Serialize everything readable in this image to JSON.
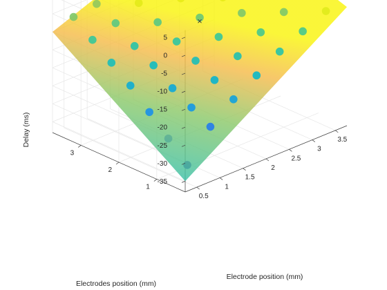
{
  "chart_data": {
    "type": "scatter3d-surface",
    "title": "",
    "xlabel": "Electrode position (mm)",
    "ylabel": "Electrodes position (mm)",
    "zlabel": "Delay (ms)",
    "xticks": [
      "0.5",
      "1",
      "1.5",
      "2",
      "2.5",
      "3",
      "3.5"
    ],
    "yticks": [
      "1",
      "2",
      "3"
    ],
    "zticks": [
      "-35",
      "-30",
      "-25",
      "-20",
      "-15",
      "-10",
      "-5",
      "0",
      "5"
    ],
    "xlim": [
      0.25,
      3.75
    ],
    "ylim": [
      0.25,
      3.75
    ],
    "zlim": [
      -38,
      7
    ],
    "grid": true,
    "colormap": "parula",
    "surface": {
      "description": "fitted plane",
      "corners": [
        {
          "x": 0.25,
          "y": 0.25,
          "z": -35
        },
        {
          "x": 3.75,
          "y": 0.25,
          "z": -5
        },
        {
          "x": 3.75,
          "y": 3.75,
          "z": 7
        },
        {
          "x": 0.25,
          "y": 3.75,
          "z": -10
        }
      ]
    },
    "centroid_marker": {
      "x": 2.0,
      "y": 2.0,
      "z": -8
    },
    "points": [
      {
        "x": 0.5,
        "y": 0.5,
        "z": -33
      },
      {
        "x": 0.5,
        "y": 1.0,
        "z": -28
      },
      {
        "x": 0.5,
        "y": 1.5,
        "z": -23
      },
      {
        "x": 0.5,
        "y": 2.0,
        "z": -18
      },
      {
        "x": 0.5,
        "y": 2.5,
        "z": -14
      },
      {
        "x": 0.5,
        "y": 3.0,
        "z": -10
      },
      {
        "x": 0.5,
        "y": 3.5,
        "z": -6
      },
      {
        "x": 1.0,
        "y": 0.5,
        "z": -25
      },
      {
        "x": 1.0,
        "y": 1.0,
        "z": -22
      },
      {
        "x": 1.0,
        "y": 1.5,
        "z": -19
      },
      {
        "x": 1.0,
        "y": 2.0,
        "z": -15
      },
      {
        "x": 1.0,
        "y": 2.5,
        "z": -12
      },
      {
        "x": 1.0,
        "y": 3.0,
        "z": -8
      },
      {
        "x": 1.0,
        "y": 3.5,
        "z": -5
      },
      {
        "x": 1.5,
        "y": 0.5,
        "z": -20
      },
      {
        "x": 1.5,
        "y": 1.0,
        "z": -17
      },
      {
        "x": 1.5,
        "y": 1.5,
        "z": -14
      },
      {
        "x": 1.5,
        "y": 2.0,
        "z": -11
      },
      {
        "x": 1.5,
        "y": 2.5,
        "z": -8
      },
      {
        "x": 1.5,
        "y": 3.0,
        "z": -5
      },
      {
        "x": 1.5,
        "y": 3.5,
        "z": -2
      },
      {
        "x": 2.0,
        "y": 0.5,
        "z": -16
      },
      {
        "x": 2.0,
        "y": 1.0,
        "z": -13
      },
      {
        "x": 2.0,
        "y": 1.5,
        "z": -10
      },
      {
        "x": 2.0,
        "y": 2.0,
        "z": -7
      },
      {
        "x": 2.0,
        "y": 2.5,
        "z": -4
      },
      {
        "x": 2.0,
        "y": 3.0,
        "z": -1
      },
      {
        "x": 2.0,
        "y": 3.5,
        "z": 1
      },
      {
        "x": 2.5,
        "y": 0.5,
        "z": -12
      },
      {
        "x": 2.5,
        "y": 1.0,
        "z": -9
      },
      {
        "x": 2.5,
        "y": 1.5,
        "z": -6
      },
      {
        "x": 2.5,
        "y": 2.0,
        "z": -4
      },
      {
        "x": 2.5,
        "y": 2.5,
        "z": -1
      },
      {
        "x": 2.5,
        "y": 3.0,
        "z": 1
      },
      {
        "x": 2.5,
        "y": 3.5,
        "z": 3
      },
      {
        "x": 3.0,
        "y": 0.5,
        "z": -9
      },
      {
        "x": 3.0,
        "y": 1.0,
        "z": -6
      },
      {
        "x": 3.0,
        "y": 1.5,
        "z": -3
      },
      {
        "x": 3.0,
        "y": 2.0,
        "z": -1
      },
      {
        "x": 3.0,
        "y": 2.5,
        "z": 1
      },
      {
        "x": 3.0,
        "y": 3.0,
        "z": 3
      },
      {
        "x": 3.0,
        "y": 3.5,
        "z": 5
      },
      {
        "x": 3.5,
        "y": 0.5,
        "z": -6
      },
      {
        "x": 3.5,
        "y": 1.0,
        "z": -3
      },
      {
        "x": 3.5,
        "y": 1.5,
        "z": -1
      },
      {
        "x": 3.5,
        "y": 2.0,
        "z": 1
      },
      {
        "x": 3.5,
        "y": 2.5,
        "z": 3
      },
      {
        "x": 3.5,
        "y": 3.0,
        "z": 5
      },
      {
        "x": 3.5,
        "y": 3.5,
        "z": 7
      }
    ]
  }
}
